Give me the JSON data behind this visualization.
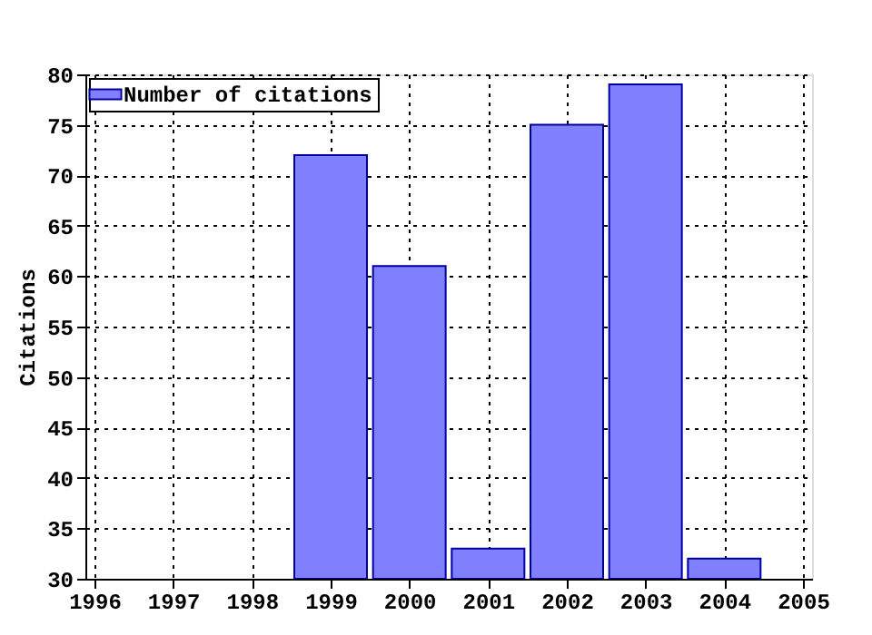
{
  "chart_data": {
    "type": "bar",
    "ylabel": "Citations",
    "x": [
      1999,
      2000,
      2001,
      2002,
      2003,
      2004
    ],
    "series": [
      {
        "name": "Number of citations",
        "color": "#8080ff",
        "values": [
          72,
          61,
          33,
          75,
          79,
          32
        ]
      }
    ],
    "xlim": [
      1996,
      2005
    ],
    "xticks": [
      1996,
      1997,
      1998,
      1999,
      2000,
      2001,
      2002,
      2003,
      2004,
      2005
    ],
    "ylim": [
      30,
      80
    ],
    "yticks": [
      30,
      35,
      40,
      45,
      50,
      55,
      60,
      65,
      70,
      75,
      80
    ],
    "grid": true,
    "legend": "top left"
  }
}
